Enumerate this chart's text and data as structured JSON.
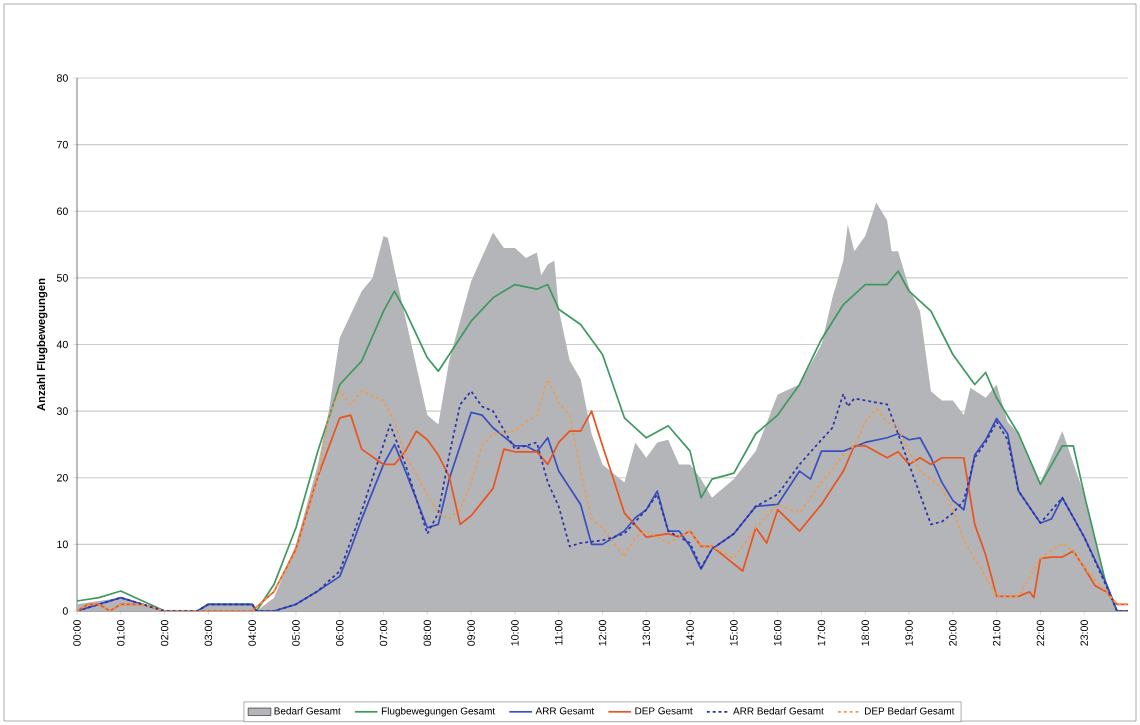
{
  "chart_data": {
    "type": "line",
    "ylabel": "Anzahl Flugbewegungen",
    "xlim": [
      0,
      24
    ],
    "ylim": [
      0,
      80
    ],
    "yticks": [
      0,
      10,
      20,
      30,
      40,
      50,
      60,
      70,
      80
    ],
    "xticks": [
      {
        "value": 0,
        "label": "00:00"
      },
      {
        "value": 1,
        "label": "01:00"
      },
      {
        "value": 2,
        "label": "02:00"
      },
      {
        "value": 3,
        "label": "03:00"
      },
      {
        "value": 4,
        "label": "04:00"
      },
      {
        "value": 5,
        "label": "05:00"
      },
      {
        "value": 6,
        "label": "06:00"
      },
      {
        "value": 7,
        "label": "07:00"
      },
      {
        "value": 8,
        "label": "08:00"
      },
      {
        "value": 9,
        "label": "09:00"
      },
      {
        "value": 10,
        "label": "10:00"
      },
      {
        "value": 11,
        "label": "11:00"
      },
      {
        "value": 12,
        "label": "12:00"
      },
      {
        "value": 13,
        "label": "13:00"
      },
      {
        "value": 14,
        "label": "14:00"
      },
      {
        "value": 15,
        "label": "15:00"
      },
      {
        "value": 16,
        "label": "16:00"
      },
      {
        "value": 17,
        "label": "17:00"
      },
      {
        "value": 18,
        "label": "18:00"
      },
      {
        "value": 19,
        "label": "19:00"
      },
      {
        "value": 20,
        "label": "20:00"
      },
      {
        "value": 21,
        "label": "21:00"
      },
      {
        "value": 22,
        "label": "22:00"
      },
      {
        "value": 23,
        "label": "23:00"
      }
    ],
    "grid": "y",
    "legend": "bottom",
    "marker": "none",
    "series": [
      {
        "name": "Bedarf Gesamt",
        "type": "area",
        "color": "#b4b5b8",
        "x": [
          0,
          1,
          1.5,
          2,
          2.75,
          3,
          4,
          4.1,
          4.5,
          5,
          5.5,
          5.75,
          6,
          6.5,
          6.75,
          7,
          7.1,
          7.25,
          7.5,
          8,
          8.25,
          8.5,
          9,
          9.5,
          9.75,
          10,
          10.25,
          10.5,
          10.6,
          10.75,
          10.9,
          11,
          11.25,
          11.5,
          11.75,
          12,
          12.5,
          12.75,
          13,
          13.25,
          13.5,
          13.75,
          14,
          14.25,
          14.5,
          15,
          15.5,
          16,
          16.5,
          17,
          17.25,
          17.5,
          17.6,
          17.75,
          18,
          18.25,
          18.5,
          18.6,
          18.75,
          19,
          19.25,
          19.5,
          19.75,
          20,
          20.25,
          20.4,
          20.75,
          21,
          21.25,
          21.5,
          22,
          22.5,
          23,
          23.5,
          23.75
        ],
        "values": [
          1,
          2,
          1,
          0,
          0,
          1,
          1,
          0,
          2,
          10,
          22,
          30,
          41,
          48,
          50,
          56.3,
          56,
          51.3,
          44,
          29.4,
          28,
          37.6,
          49.5,
          56.8,
          54.5,
          54.5,
          53,
          53.8,
          50.4,
          52,
          52.6,
          45.3,
          37.6,
          34.8,
          26.6,
          22,
          19.3,
          25.3,
          23,
          25.3,
          25.7,
          22,
          22,
          19.8,
          17,
          19.8,
          24,
          32.5,
          34,
          40,
          47,
          52.6,
          58,
          54,
          56.3,
          61.3,
          58.6,
          54,
          54,
          48.5,
          45,
          33,
          31.6,
          31.6,
          29.4,
          33.5,
          32,
          34,
          28.4,
          26.6,
          19.3,
          27,
          17.5,
          3.8,
          0
        ]
      },
      {
        "name": "Flugbewegungen Gesamt",
        "color": "#3f9a62",
        "x": [
          0,
          0.5,
          1,
          1.5,
          2,
          2.75,
          3,
          4,
          4.1,
          4.5,
          5,
          5.5,
          6,
          6.5,
          7,
          7.25,
          7.5,
          8,
          8.25,
          8.5,
          9,
          9.5,
          10,
          10.5,
          10.75,
          11,
          11.5,
          12,
          12.5,
          13,
          13.5,
          14,
          14.25,
          14.5,
          15,
          15.5,
          16,
          16.5,
          17,
          17.5,
          18,
          18.5,
          18.75,
          19,
          19.5,
          20,
          20.5,
          20.75,
          21,
          21.5,
          22,
          22.5,
          22.75,
          23,
          23.5,
          23.75
        ],
        "values": [
          1.5,
          2,
          3,
          1.5,
          0,
          0,
          1,
          1,
          0,
          4,
          12.5,
          24,
          34,
          37.5,
          45,
          48,
          45,
          38,
          36,
          38.5,
          43.5,
          47,
          49,
          48.3,
          49,
          45.3,
          43,
          38.5,
          29,
          26,
          27.8,
          24,
          17,
          19.8,
          20.7,
          26.6,
          29.4,
          34,
          40.8,
          46,
          49,
          49,
          51,
          48,
          45,
          38.5,
          34,
          35.8,
          32,
          26.6,
          19,
          24.8,
          24.8,
          17.5,
          4,
          0
        ]
      },
      {
        "name": "ARR  Gesamt",
        "color": "#3a4fc0",
        "x": [
          0,
          0.5,
          1,
          1.5,
          2,
          2.75,
          3,
          4,
          4.1,
          4.5,
          5,
          5.5,
          6,
          6.25,
          6.5,
          7,
          7.25,
          7.5,
          8,
          8.25,
          8.5,
          9,
          9.25,
          9.5,
          10,
          10.25,
          10.5,
          10.75,
          11,
          11.5,
          11.75,
          12,
          12.5,
          12.75,
          13,
          13.25,
          13.5,
          13.75,
          14,
          14.25,
          14.5,
          15,
          15.5,
          16,
          16.5,
          16.75,
          17,
          17.5,
          18,
          18.5,
          18.75,
          19,
          19.25,
          19.5,
          19.75,
          20,
          20.25,
          20.5,
          20.75,
          21,
          21.25,
          21.5,
          22,
          22.25,
          22.5,
          23,
          23.5,
          23.75,
          24
        ],
        "values": [
          0,
          1,
          2,
          1,
          0,
          0,
          1,
          1,
          0,
          0,
          1,
          3,
          5.2,
          9.3,
          13.8,
          22,
          25,
          21,
          12.5,
          13,
          19.8,
          29.8,
          29.4,
          27.5,
          24.8,
          24.8,
          23.9,
          26,
          21,
          16,
          10,
          10,
          12,
          14,
          15.2,
          18,
          12,
          12,
          9.7,
          6.3,
          9.3,
          11.6,
          15.7,
          16,
          21,
          19.8,
          24,
          24,
          25.3,
          26,
          26.6,
          25.7,
          26,
          23,
          19.3,
          16.6,
          15.2,
          23.4,
          25.7,
          28.9,
          26.6,
          18,
          13.2,
          13.8,
          17,
          11.1,
          4.2,
          0,
          0
        ]
      },
      {
        "name": "DEP Gesamt",
        "color": "#e9541f",
        "x": [
          0,
          0.25,
          0.5,
          0.75,
          1,
          1.5,
          2,
          4,
          4.5,
          5,
          5.5,
          6,
          6.25,
          6.5,
          7,
          7.25,
          7.5,
          7.75,
          8,
          8.25,
          8.5,
          8.75,
          9,
          9.5,
          9.75,
          10,
          10.5,
          10.75,
          11,
          11.25,
          11.5,
          11.75,
          12,
          12.25,
          12.5,
          13,
          13.5,
          13.75,
          14,
          14.25,
          14.5,
          15.2,
          15.5,
          15.75,
          16,
          16.5,
          17,
          17.5,
          17.75,
          18,
          18.5,
          18.75,
          19,
          19.25,
          19.5,
          19.75,
          20,
          20.25,
          20.5,
          20.75,
          21,
          21.5,
          21.75,
          21.85,
          22,
          22.25,
          22.5,
          22.75,
          23,
          23.25,
          23.5,
          23.75,
          24
        ],
        "values": [
          0,
          1,
          1,
          0,
          1,
          1,
          0,
          0,
          2.9,
          9.3,
          20.2,
          29,
          29.4,
          24.3,
          22,
          22,
          24,
          27,
          25.7,
          23.4,
          20.2,
          13,
          14.3,
          18.4,
          24.3,
          23.9,
          23.9,
          22,
          25.3,
          27,
          27,
          30,
          24.8,
          19.8,
          14.7,
          11.1,
          11.6,
          11.1,
          12,
          9.7,
          9.7,
          6,
          12.5,
          10.2,
          15.2,
          12,
          16,
          21,
          24.8,
          24.8,
          23,
          23.9,
          22,
          23,
          22,
          23,
          23,
          23,
          13,
          8.4,
          2.2,
          2.2,
          2.9,
          2,
          7.9,
          8.1,
          8.1,
          9,
          6.5,
          3.8,
          2.9,
          1,
          1
        ]
      },
      {
        "name": "ARR  Bedarf Gesamt",
        "color": "#2c33a8",
        "line_style": "dotted",
        "x": [
          0,
          0.5,
          1,
          1.5,
          2,
          2.75,
          3,
          4,
          4.1,
          4.5,
          5,
          5.5,
          6,
          6.5,
          7,
          7.15,
          7.5,
          8,
          8.25,
          8.5,
          8.75,
          9,
          9.25,
          9.5,
          10,
          10.5,
          10.75,
          11,
          11.25,
          11.5,
          12,
          12.5,
          13,
          13.25,
          13.5,
          14,
          14.25,
          14.5,
          15,
          15.5,
          16,
          16.5,
          17,
          17.25,
          17.5,
          17.6,
          17.75,
          18,
          18.5,
          18.75,
          19,
          19.25,
          19.5,
          19.75,
          20,
          20.25,
          20.5,
          20.75,
          21,
          21.25,
          21.5,
          22,
          22.5,
          23,
          23.5,
          23.75,
          24
        ],
        "values": [
          0,
          1,
          2,
          1,
          0,
          0,
          1,
          1,
          0,
          0,
          1,
          3,
          6,
          15,
          25,
          28,
          22,
          11.6,
          14.7,
          23.4,
          31,
          33,
          30.7,
          30,
          24.3,
          25.3,
          19.3,
          15.7,
          9.7,
          10.2,
          10.6,
          11.6,
          15.2,
          17.5,
          12,
          10.2,
          6.5,
          9.3,
          11.6,
          15.7,
          17.5,
          22,
          25.7,
          27.5,
          32.6,
          30.7,
          31.9,
          31.6,
          31,
          26.6,
          22,
          17.5,
          13,
          13.4,
          14.7,
          16.6,
          23,
          25.3,
          28.4,
          25.7,
          18,
          13.2,
          17,
          11.1,
          3.8,
          0,
          0
        ]
      },
      {
        "name": "DEP Bedarf Gesamt",
        "color": "#f29a4c",
        "line_style": "dotted",
        "x": [
          0,
          0.25,
          0.5,
          0.75,
          1,
          1.5,
          2,
          4,
          4.5,
          5,
          5.5,
          5.75,
          6,
          6.25,
          6.5,
          7,
          7.25,
          7.5,
          8,
          8.25,
          8.5,
          8.75,
          9,
          9.25,
          9.5,
          10,
          10.25,
          10.5,
          10.75,
          11,
          11.25,
          11.5,
          11.75,
          12,
          12.5,
          12.75,
          13,
          13.5,
          14,
          14.25,
          14.5,
          15,
          15.5,
          16,
          16.5,
          17,
          17.5,
          17.75,
          18,
          18.25,
          18.5,
          18.75,
          19,
          19.25,
          19.5,
          19.75,
          20,
          20.25,
          20.5,
          20.75,
          21,
          21.5,
          22,
          22.5,
          22.75,
          23,
          23.5,
          23.75,
          24
        ],
        "values": [
          0,
          1,
          1,
          0,
          1,
          1,
          0,
          0,
          3,
          9,
          20,
          29.4,
          33,
          31,
          33,
          31.6,
          28.4,
          23.4,
          17.5,
          14.7,
          13.8,
          15.2,
          19.3,
          24.8,
          26.6,
          27,
          28.4,
          29.4,
          34.8,
          31.2,
          29.4,
          21,
          13.8,
          12.5,
          8.1,
          11.1,
          12,
          10.2,
          12,
          9.7,
          9.7,
          7.9,
          12.5,
          16,
          14.7,
          19.3,
          23.4,
          24.8,
          28.4,
          30.3,
          28.4,
          27.5,
          23.9,
          21,
          19.8,
          18.4,
          15.2,
          10.6,
          7.9,
          5.2,
          2.2,
          2.2,
          7.9,
          10.2,
          9,
          6.5,
          2.9,
          1,
          1
        ]
      }
    ]
  }
}
